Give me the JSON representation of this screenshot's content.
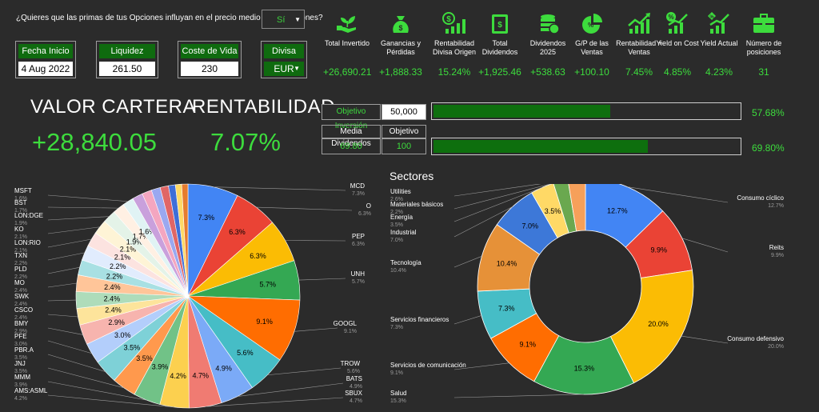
{
  "header": {
    "question": "¿Quieres que las primas de tus Opciones influyan en el precio medio de las Acciones?",
    "question_value": "Sí"
  },
  "kpi_boxes": [
    {
      "label": "Fecha Inicio",
      "value": "4 Aug 2022"
    },
    {
      "label": "Liquidez",
      "value": "261.50"
    },
    {
      "label": "Coste de Vida",
      "value": "230"
    },
    {
      "label": "Divisa",
      "value": "EUR"
    }
  ],
  "stats": [
    {
      "icon": "hand-plant-icon",
      "label": "Total Invertido",
      "value": "+26,690.21"
    },
    {
      "icon": "money-bag-icon",
      "label": "Ganancias y Pérdidas",
      "value": "+1,888.33"
    },
    {
      "icon": "dollar-growth-icon",
      "label": "Rentabilidad Divisa Origen",
      "value": "15.24%"
    },
    {
      "icon": "cash-stack-icon",
      "label": "Total Dividendos",
      "value": "+1,925.46"
    },
    {
      "icon": "coins-icon",
      "label": "Dividendos 2025",
      "value": "+538.63"
    },
    {
      "icon": "pie-chart-icon",
      "label": "G/P de las Ventas",
      "value": "+100.10"
    },
    {
      "icon": "growth-chart-icon",
      "label": "Rentabilidad + Ventas",
      "value": "7.45%"
    },
    {
      "icon": "yield-cost-icon",
      "label": "Yield on Cost",
      "value": "4.85%"
    },
    {
      "icon": "yield-actual-icon",
      "label": "Yield Actual",
      "value": "4.23%"
    },
    {
      "icon": "briefcase-icon",
      "label": "Número de posiciones",
      "value": "31"
    }
  ],
  "summary": {
    "valor_label": "VALOR CARTERA",
    "valor_value": "+28,840.05",
    "rent_label": "RENTABILIDAD",
    "rent_value": "7.07%"
  },
  "objectives": {
    "inv_label": "Objetivo Inversión",
    "inv_value": "50,000",
    "inv_progress": 0.5768,
    "inv_pct": "57.68%",
    "div_label": "Media Dividendos",
    "div_obj_label": "Objetivo",
    "div_value": "69.80",
    "div_obj_value": "100",
    "div_progress": 0.698,
    "div_pct": "69.80%"
  },
  "colors": {
    "accent_green": "#3ddc3d",
    "dark_green": "#0f6b0f",
    "background": "#2b2b2b"
  },
  "chart_data": [
    {
      "type": "pie",
      "title": "",
      "slices": [
        {
          "name": "MCD",
          "value": 7.3,
          "color": "#4285f4"
        },
        {
          "name": "O",
          "value": 6.3,
          "color": "#ea4335"
        },
        {
          "name": "PEP",
          "value": 6.3,
          "color": "#fbbc04"
        },
        {
          "name": "UNH",
          "value": 5.7,
          "color": "#34a853"
        },
        {
          "name": "GOOGL",
          "value": 9.1,
          "color": "#ff6d01"
        },
        {
          "name": "TROW",
          "value": 5.6,
          "color": "#46bdc6"
        },
        {
          "name": "BATS",
          "value": 4.9,
          "color": "#7baaf7"
        },
        {
          "name": "SBUX",
          "value": 4.7,
          "color": "#f07b72"
        },
        {
          "name": "AMS:ASML",
          "value": 4.2,
          "color": "#fcd04f"
        },
        {
          "name": "MMM",
          "value": 3.9,
          "color": "#71c287"
        },
        {
          "name": "JNJ",
          "value": 3.5,
          "color": "#ff994d"
        },
        {
          "name": "PBR.A",
          "value": 3.5,
          "color": "#7ed1d7"
        },
        {
          "name": "PFE",
          "value": 3.0,
          "color": "#b3cefb"
        },
        {
          "name": "BMY",
          "value": 2.9,
          "color": "#f7b4ae"
        },
        {
          "name": "CSCO",
          "value": 2.4,
          "color": "#fde49b"
        },
        {
          "name": "SWK",
          "value": 2.4,
          "color": "#aedcba"
        },
        {
          "name": "MO",
          "value": 2.4,
          "color": "#ffc599"
        },
        {
          "name": "PLD",
          "value": 2.2,
          "color": "#a8e0e3"
        },
        {
          "name": "TXN",
          "value": 2.2,
          "color": "#e1ecfd"
        },
        {
          "name": "LON:RIO",
          "value": 2.1,
          "color": "#fce3e0"
        },
        {
          "name": "KO",
          "value": 2.1,
          "color": "#fef4d6"
        },
        {
          "name": "LON:DGE",
          "value": 1.9,
          "color": "#e4f3e8"
        },
        {
          "name": "BST",
          "value": 1.7,
          "color": "#fff0e3"
        },
        {
          "name": "MSFT",
          "value": 1.6,
          "color": "#e0f3f4"
        },
        {
          "name": "",
          "value": 1.5,
          "color": "#c9a0dc"
        },
        {
          "name": "",
          "value": 1.4,
          "color": "#f4a6c0"
        },
        {
          "name": "",
          "value": 1.3,
          "color": "#9aa8f0"
        },
        {
          "name": "",
          "value": 1.2,
          "color": "#e06666"
        },
        {
          "name": "",
          "value": 1.0,
          "color": "#3e6ed8"
        },
        {
          "name": "",
          "value": 0.9,
          "color": "#ffd966"
        },
        {
          "name": "",
          "value": 0.9,
          "color": "#e67c2e"
        }
      ],
      "labels": {
        "MCD": "7.3%",
        "O": "6.3%",
        "PEP": "6.3%",
        "UNH": "5.7%",
        "GOOGL": "9.1%",
        "TROW": "5.6%",
        "BATS": "4.9%",
        "SBUX": "4.7%",
        "AMS:ASML": "4.2%",
        "MMM": "3.9%",
        "JNJ": "3.5%",
        "PBR.A": "3.5%",
        "PFE": "3.0%",
        "BMY": "2.9%",
        "CSCO": "2.4%",
        "SWK": "2.4%",
        "MO": "2.4%",
        "PLD": "2.2%",
        "TXN": "2.2%",
        "LON:RIO": "2.1%",
        "KO": "2.1%",
        "LON:DGE": "1.9%",
        "BST": "1.7%",
        "MSFT": "1.6%"
      }
    },
    {
      "type": "pie",
      "title": "Sectores",
      "donut": true,
      "slices": [
        {
          "name": "Consumo cíclico",
          "value": 12.7,
          "color": "#4285f4",
          "label": "12.7%"
        },
        {
          "name": "Reits",
          "value": 9.9,
          "color": "#ea4335",
          "label": "9.9%"
        },
        {
          "name": "Consumo defensivo",
          "value": 20.0,
          "color": "#fbbc04",
          "label": "20.0%"
        },
        {
          "name": "Salud",
          "value": 15.3,
          "color": "#34a853",
          "label": "15.3%"
        },
        {
          "name": "Servicios de comunicación",
          "value": 9.1,
          "color": "#ff6d01",
          "label": "9.1%"
        },
        {
          "name": "Servicios financieros",
          "value": 7.3,
          "color": "#46bdc6",
          "label": "7.3%"
        },
        {
          "name": "Tecnología",
          "value": 10.4,
          "color": "#e69138",
          "label": "10.4%"
        },
        {
          "name": "Industrial",
          "value": 7.0,
          "color": "#3d78d8",
          "label": "7.0%"
        },
        {
          "name": "Energía",
          "value": 3.5,
          "color": "#ffd966",
          "label": "3.5%"
        },
        {
          "name": "Materiales básicos",
          "value": 2.2,
          "color": "#6aa84f",
          "label": "2.2%"
        },
        {
          "name": "Utilities",
          "value": 2.6,
          "color": "#f6a05a",
          "label": "2.6%"
        }
      ]
    }
  ]
}
